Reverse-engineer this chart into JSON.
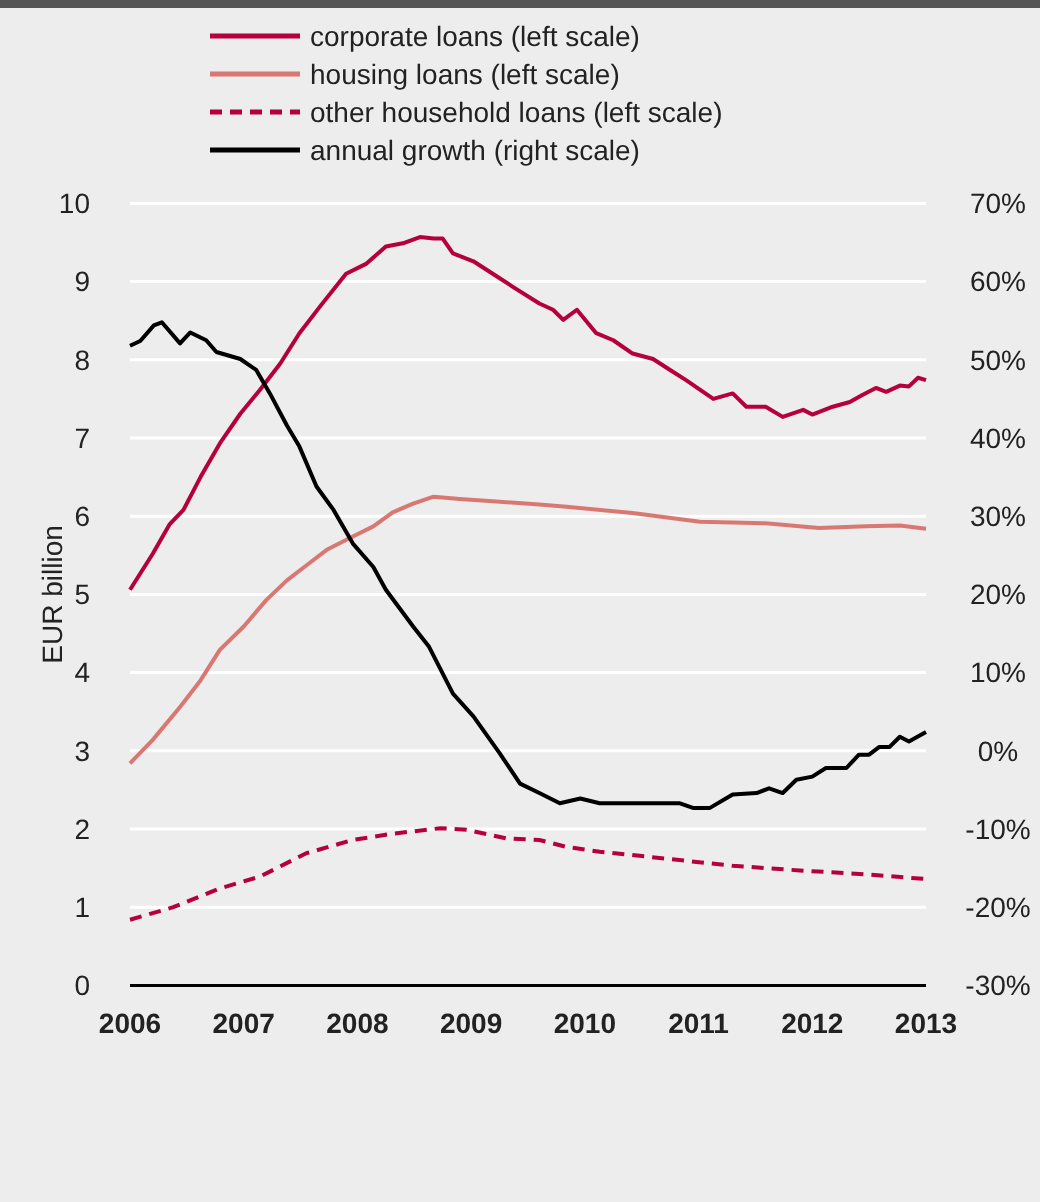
{
  "chart_data": {
    "type": "line",
    "ylabel": "EUR billion",
    "xlim": [
      2006,
      2013
    ],
    "xticks": [
      2006,
      2007,
      2008,
      2009,
      2010,
      2011,
      2012,
      2013
    ],
    "ylim": [
      0,
      10
    ],
    "yticks": [
      0,
      1,
      2,
      3,
      4,
      5,
      6,
      7,
      8,
      9,
      10
    ],
    "y2lim": [
      -30,
      70
    ],
    "y2ticks": [
      {
        "value": -30,
        "label": "-30%"
      },
      {
        "value": -20,
        "label": "-20%"
      },
      {
        "value": -10,
        "label": "-10%"
      },
      {
        "value": 0,
        "label": "0%"
      },
      {
        "value": 10,
        "label": "10%"
      },
      {
        "value": 20,
        "label": "20%"
      },
      {
        "value": 30,
        "label": "30%"
      },
      {
        "value": 40,
        "label": "40%"
      },
      {
        "value": 50,
        "label": "50%"
      },
      {
        "value": 60,
        "label": "60%"
      },
      {
        "value": 70,
        "label": "70%"
      }
    ],
    "grid": "y",
    "legend": "top",
    "marker": "none",
    "series": [
      {
        "name": "corporate loans (left scale)",
        "color": "#b5003c",
        "line_style": "solid",
        "x": [
          2006.0,
          2006.2,
          2006.35,
          2006.47,
          2006.62,
          2006.79,
          2006.97,
          2007.14,
          2007.32,
          2007.49,
          2007.67,
          2007.9,
          2008.08,
          2008.25,
          2008.4,
          2008.55,
          2008.67,
          2008.75,
          2008.84,
          2009.02,
          2009.19,
          2009.37,
          2009.6,
          2009.72,
          2009.81,
          2009.93,
          2010.1,
          2010.25,
          2010.42,
          2010.6,
          2010.75,
          2010.89,
          2011.13,
          2011.3,
          2011.42,
          2011.59,
          2011.74,
          2011.92,
          2012.0,
          2012.18,
          2012.33,
          2012.44,
          2012.56,
          2012.65,
          2012.77,
          2012.85,
          2012.93,
          2013.0
        ],
        "values": [
          5.06,
          5.52,
          5.9,
          6.08,
          6.5,
          6.93,
          7.31,
          7.61,
          7.95,
          8.34,
          8.68,
          9.1,
          9.23,
          9.45,
          9.49,
          9.57,
          9.55,
          9.55,
          9.36,
          9.26,
          9.1,
          8.93,
          8.72,
          8.64,
          8.51,
          8.64,
          8.34,
          8.25,
          8.08,
          8.01,
          7.87,
          7.74,
          7.5,
          7.57,
          7.4,
          7.4,
          7.27,
          7.36,
          7.3,
          7.4,
          7.46,
          7.55,
          7.64,
          7.59,
          7.67,
          7.66,
          7.77,
          7.74
        ]
      },
      {
        "name": "housing loans (left scale)",
        "color": "#d97873",
        "line_style": "solid",
        "x": [
          2006.0,
          2006.2,
          2006.44,
          2006.62,
          2006.79,
          2007.0,
          2007.2,
          2007.38,
          2007.55,
          2007.73,
          2007.96,
          2008.14,
          2008.31,
          2008.49,
          2008.67,
          2008.9,
          2009.19,
          2009.6,
          2009.84,
          2010.42,
          2011.01,
          2011.59,
          2012.06,
          2012.47,
          2012.77,
          2013.0
        ],
        "values": [
          2.84,
          3.14,
          3.56,
          3.9,
          4.29,
          4.59,
          4.93,
          5.18,
          5.37,
          5.57,
          5.74,
          5.87,
          6.05,
          6.16,
          6.25,
          6.22,
          6.19,
          6.15,
          6.12,
          6.04,
          5.93,
          5.91,
          5.85,
          5.87,
          5.88,
          5.84
        ]
      },
      {
        "name": "other household loans (left scale)",
        "color": "#b5003c",
        "line_style": "dashed",
        "x": [
          2006.0,
          2006.38,
          2006.79,
          2007.14,
          2007.55,
          2007.96,
          2008.31,
          2008.73,
          2008.96,
          2009.31,
          2009.6,
          2009.84,
          2010.13,
          2010.72,
          2011.3,
          2011.89,
          2012.47,
          2013.0
        ],
        "values": [
          0.84,
          1.0,
          1.24,
          1.39,
          1.69,
          1.86,
          1.94,
          2.01,
          1.99,
          1.88,
          1.86,
          1.77,
          1.71,
          1.62,
          1.53,
          1.47,
          1.42,
          1.36
        ]
      },
      {
        "name": "annual growth (right scale)",
        "color": "#000000",
        "line_style": "solid",
        "axis": "y2",
        "x": [
          2006.0,
          2006.09,
          2006.21,
          2006.28,
          2006.44,
          2006.53,
          2006.67,
          2006.76,
          2006.97,
          2007.11,
          2007.23,
          2007.38,
          2007.49,
          2007.64,
          2007.79,
          2007.96,
          2008.14,
          2008.25,
          2008.49,
          2008.63,
          2008.84,
          2009.02,
          2009.25,
          2009.43,
          2009.6,
          2009.78,
          2009.96,
          2010.13,
          2010.42,
          2010.83,
          2010.95,
          2011.1,
          2011.3,
          2011.51,
          2011.62,
          2011.74,
          2011.86,
          2012.0,
          2012.12,
          2012.3,
          2012.41,
          2012.5,
          2012.59,
          2012.68,
          2012.77,
          2012.85,
          2013.0
        ],
        "values": [
          51.8,
          52.4,
          54.4,
          54.8,
          52.1,
          53.5,
          52.5,
          51.0,
          50.1,
          48.7,
          45.7,
          41.6,
          38.9,
          33.8,
          30.8,
          26.5,
          23.5,
          20.6,
          15.9,
          13.3,
          7.3,
          4.4,
          -0.3,
          -4.2,
          -5.4,
          -6.7,
          -6.1,
          -6.7,
          -6.7,
          -6.7,
          -7.3,
          -7.3,
          -5.6,
          -5.4,
          -4.8,
          -5.4,
          -3.7,
          -3.3,
          -2.2,
          -2.2,
          -0.5,
          -0.5,
          0.5,
          0.5,
          1.8,
          1.2,
          2.4
        ]
      }
    ]
  }
}
